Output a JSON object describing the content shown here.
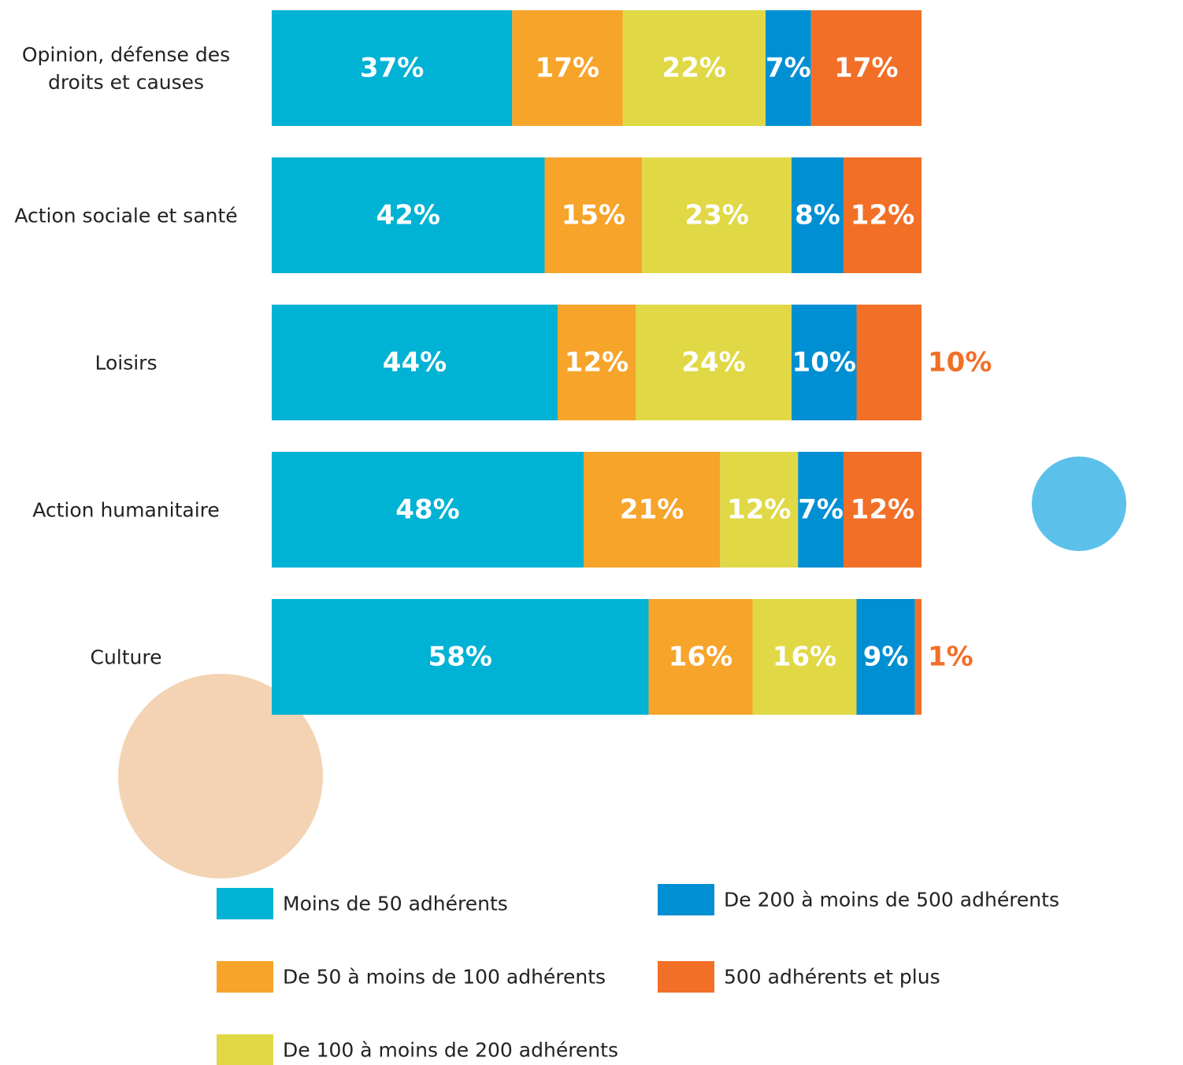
{
  "chart_data": {
    "type": "stacked_bar_horizontal",
    "categories": [
      "Opinion, défense des droits et causes",
      "Action sociale et santé",
      "Loisirs",
      "Action humanitaire",
      "Culture"
    ],
    "series": [
      {
        "name": "Moins de 50 adhérents",
        "color": "#00b2d3",
        "values": [
          37,
          42,
          44,
          48,
          58
        ],
        "value_labels": [
          "37%",
          "42%",
          "44%",
          "48%",
          "58%"
        ]
      },
      {
        "name": "De 50 à moins de 100 adhérents",
        "color": "#f7a42b",
        "values": [
          17,
          15,
          12,
          21,
          16
        ],
        "value_labels": [
          "17%",
          "15%",
          "12%",
          "21%",
          "16%"
        ]
      },
      {
        "name": "De 100 à moins de 200 adhérents",
        "color": "#e0d845",
        "values": [
          22,
          23,
          24,
          12,
          16
        ],
        "value_labels": [
          "22%",
          "23%",
          "24%",
          "12%",
          "16%"
        ]
      },
      {
        "name": "De 200 à moins de 500 adhérents",
        "color": "#008fd3",
        "values": [
          7,
          8,
          10,
          7,
          9
        ],
        "value_labels": [
          "7%",
          "8%",
          "10%",
          "7%",
          "9%"
        ]
      },
      {
        "name": "500 adhérents et plus",
        "color": "#f26f27",
        "values": [
          17,
          12,
          10,
          12,
          1
        ],
        "value_labels": [
          "17%",
          "12%",
          "10%",
          "12%",
          "1%"
        ]
      }
    ],
    "xlim": [
      0,
      100
    ]
  }
}
